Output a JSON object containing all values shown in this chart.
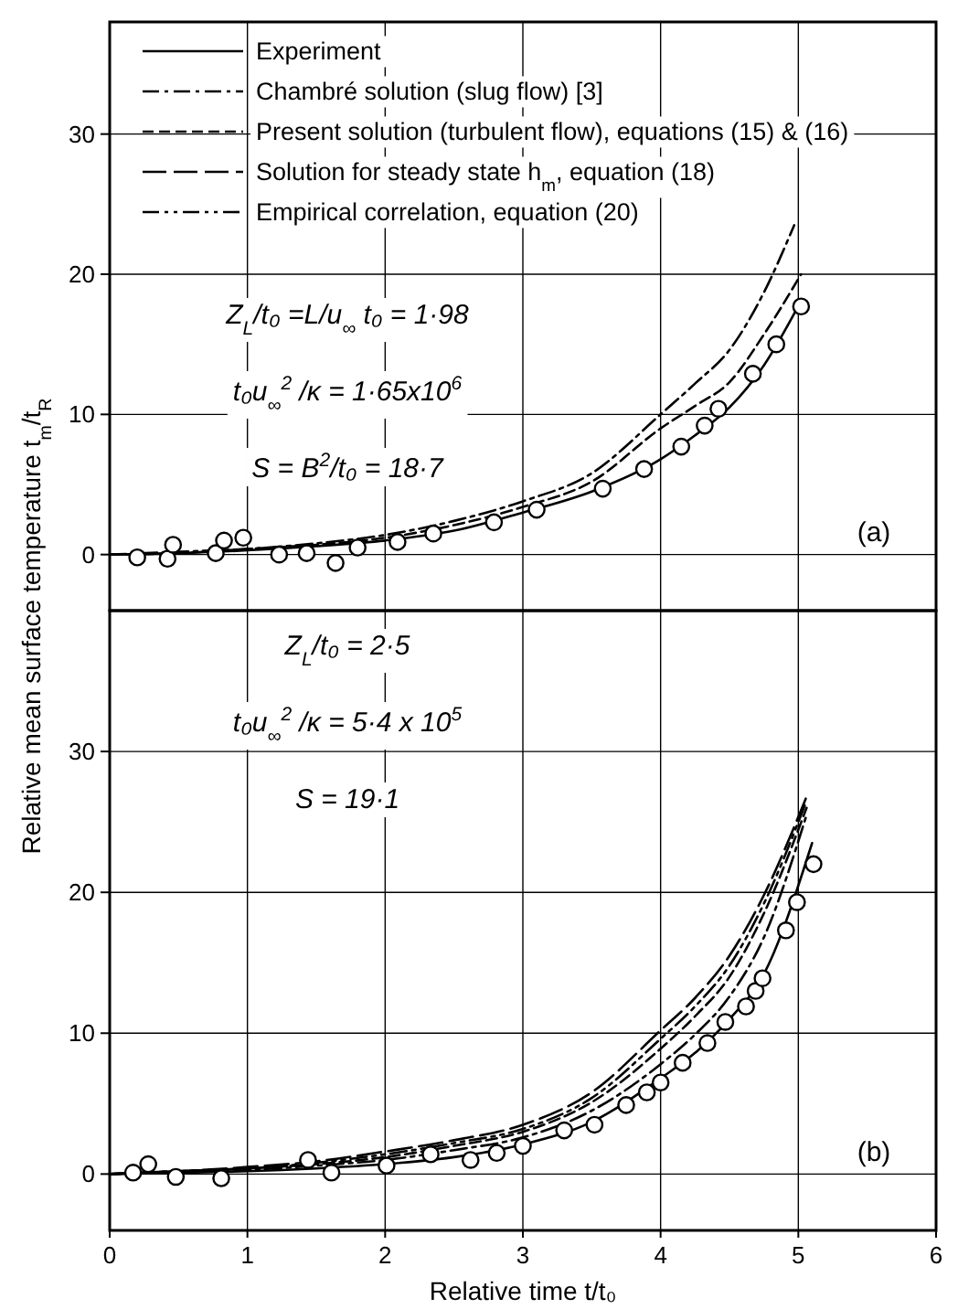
{
  "chart_data": [
    {
      "type": "line",
      "ylabel": "Relative mean surface temperature t$_{m}$/t$_{R}$",
      "xlim": [
        0,
        6
      ],
      "xticks": [
        0,
        1,
        2,
        3,
        4,
        5,
        6
      ],
      "ylim": [
        -4,
        38
      ],
      "yticks": [
        0,
        10,
        20,
        30
      ],
      "tick_labels": "y",
      "grid": true,
      "legend": "top left",
      "annotations": [
        "Z$_{L}$/t₀ =L/u$_{∞}$   t₀ = 1·98",
        "t₀u$_{∞}$$^{2}$ /κ = 1·65x10$^{6}$",
        "S = B$^{2}$/t₀ = 18·7",
        "(a)"
      ],
      "series": [
        {
          "name": "Experiment",
          "color": "#000000",
          "line_style": "solid",
          "marker": "none",
          "x": [
            0,
            0.5,
            1,
            1.5,
            2,
            2.5,
            3,
            3.5,
            4,
            4.25,
            4.5,
            4.75,
            5.02
          ],
          "values": [
            0,
            0.1,
            0.3,
            0.6,
            1.0,
            1.7,
            3.0,
            4.5,
            6.8,
            8.5,
            10.5,
            13.5,
            18.1
          ]
        },
        {
          "name": "Chambré solution (slug flow) [3]",
          "color": "#000000",
          "line_style": "dashdot",
          "marker": "none",
          "x": [
            0,
            0.5,
            1,
            1.5,
            2,
            2.5,
            3,
            3.5,
            4,
            4.25,
            4.5,
            4.75,
            4.97
          ],
          "values": [
            0,
            0.2,
            0.4,
            0.8,
            1.4,
            2.4,
            3.8,
            5.8,
            10.0,
            12.2,
            14.6,
            18.7,
            23.5
          ]
        },
        {
          "name": "Present solution (turbulent flow), equations (15) & (16)",
          "color": "#000000",
          "line_style": "dashed",
          "marker": "none",
          "x": [
            0,
            0.5,
            1,
            1.5,
            2,
            2.5,
            3,
            3.5,
            4,
            4.25,
            4.5,
            4.75,
            5.02
          ],
          "values": [
            0,
            0.1,
            0.4,
            0.7,
            1.2,
            2.1,
            3.4,
            5.2,
            9.0,
            10.6,
            12.3,
            15.7,
            20.0
          ]
        },
        {
          "type": "scatter",
          "color": "#000000",
          "marker": "circle",
          "x": [
            0.2,
            0.42,
            0.46,
            0.77,
            0.83,
            0.97,
            1.23,
            1.43,
            1.64,
            1.8,
            2.09,
            2.35,
            2.79,
            3.1,
            3.58,
            3.88,
            4.15,
            4.32,
            4.42,
            4.67,
            4.84,
            5.02
          ],
          "values": [
            -0.2,
            -0.3,
            0.7,
            0.1,
            1.0,
            1.2,
            0,
            0.1,
            -0.6,
            0.5,
            0.9,
            1.5,
            2.3,
            3.2,
            4.7,
            6.1,
            7.7,
            9.2,
            10.4,
            12.9,
            15.0,
            17.7
          ]
        }
      ]
    },
    {
      "type": "line",
      "xlabel": "Relative time t/t₀",
      "xlim": [
        0,
        6
      ],
      "xticks": [
        0,
        1,
        2,
        3,
        4,
        5,
        6
      ],
      "ylim": [
        -4,
        40
      ],
      "yticks": [
        0,
        10,
        20,
        30
      ],
      "grid": true,
      "annotations": [
        "Z$_{L}$/t₀ = 2·5",
        "t₀u$_{∞}$$^{2}$ /κ = 5·4 x 10$^{5}$",
        "S = 19·1",
        "(b)"
      ],
      "series": [
        {
          "color": "#000000",
          "line_style": "solid",
          "marker": "none",
          "x": [
            0,
            0.5,
            1,
            1.5,
            2,
            2.5,
            3,
            3.5,
            4,
            4.25,
            4.5,
            4.75,
            5.1
          ],
          "values": [
            0,
            0.1,
            0.2,
            0.4,
            0.7,
            1.2,
            2.1,
            3.7,
            6.8,
            8.6,
            11.0,
            14.2,
            23.5
          ]
        },
        {
          "color": "#000000",
          "line_style": "dashdot",
          "marker": "none",
          "x": [
            0,
            0.5,
            1,
            1.5,
            2,
            2.5,
            3,
            3.5,
            4,
            4.25,
            4.5,
            4.75,
            5.06
          ],
          "values": [
            0,
            0.2,
            0.3,
            0.6,
            1.0,
            1.7,
            2.6,
            4.5,
            7.8,
            9.9,
            12.6,
            16.8,
            25.5
          ]
        },
        {
          "color": "#000000",
          "line_style": "dashed",
          "marker": "none",
          "x": [
            0,
            0.5,
            1,
            1.5,
            2,
            2.5,
            3,
            3.5,
            4,
            4.25,
            4.5,
            4.75,
            5.06
          ],
          "values": [
            0,
            0.2,
            0.4,
            0.7,
            1.2,
            2.0,
            3.0,
            5.1,
            8.9,
            11.2,
            14.0,
            18.5,
            26.0
          ]
        },
        {
          "name": "Solution for steady state h$_{m}$, equation (18)",
          "color": "#000000",
          "line_style": "longdash",
          "marker": "none",
          "x": [
            0,
            0.5,
            1,
            1.5,
            2,
            2.5,
            3,
            3.5,
            4,
            4.25,
            4.5,
            4.75,
            5.06
          ],
          "values": [
            0,
            0.2,
            0.5,
            0.9,
            1.6,
            2.4,
            3.5,
            5.8,
            10.2,
            12.5,
            15.5,
            19.8,
            26.8
          ]
        },
        {
          "name": "Empirical correlation, equation (20)",
          "color": "#000000",
          "line_style": "dashdotdot",
          "marker": "none",
          "x": [
            0,
            0.5,
            1,
            1.5,
            2,
            2.5,
            3,
            3.5,
            4,
            4.25,
            4.5,
            4.75,
            5.06
          ],
          "values": [
            0,
            0.2,
            0.4,
            0.8,
            1.4,
            2.2,
            3.2,
            5.4,
            9.6,
            11.9,
            14.8,
            19.2,
            26.5
          ]
        },
        {
          "type": "scatter",
          "color": "#000000",
          "marker": "circle",
          "x": [
            0.17,
            0.28,
            0.48,
            0.81,
            1.44,
            1.61,
            2.01,
            2.33,
            2.62,
            2.81,
            3.0,
            3.3,
            3.52,
            3.75,
            3.9,
            4.0,
            4.16,
            4.34,
            4.47,
            4.62,
            4.69,
            4.74,
            4.91,
            4.99,
            5.11
          ],
          "values": [
            0.1,
            0.7,
            -0.2,
            -0.3,
            1.0,
            0.1,
            0.6,
            1.4,
            1.0,
            1.5,
            2.0,
            3.1,
            3.5,
            4.9,
            5.8,
            6.5,
            7.9,
            9.3,
            10.8,
            11.9,
            13.0,
            13.9,
            17.3,
            19.3,
            22.0
          ]
        }
      ]
    }
  ]
}
